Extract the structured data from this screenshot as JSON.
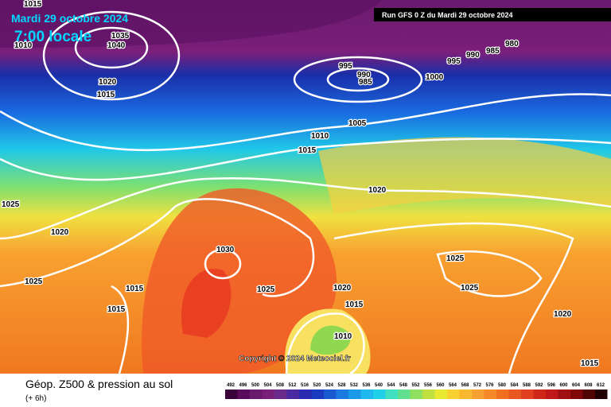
{
  "header": {
    "date": "Mardi 29 octobre 2024",
    "time": "7:00 locale",
    "run": "Run GFS 0 Z du Mardi 29 octobre 2024"
  },
  "copyright": "Copyright © 2024 Meteociel.fr",
  "footer": {
    "title": "Géop. Z500 & pression au sol",
    "step": "(+ 6h)"
  },
  "isobar_labels": [
    1010,
    1015,
    1035,
    1040,
    1020,
    1015,
    995,
    990,
    985,
    1000,
    995,
    990,
    985,
    980,
    1005,
    1010,
    1015,
    1020,
    1025,
    1020,
    1025,
    1030,
    1025,
    1015,
    1015,
    1020,
    1015,
    1010,
    1025,
    1025,
    1020,
    1015
  ],
  "colorbar": [
    492,
    496,
    500,
    504,
    508,
    512,
    516,
    520,
    524,
    528,
    532,
    536,
    540,
    544,
    548,
    552,
    556,
    560,
    564,
    568,
    572,
    576,
    580,
    584,
    588,
    592,
    596,
    600,
    604,
    608,
    612
  ]
}
